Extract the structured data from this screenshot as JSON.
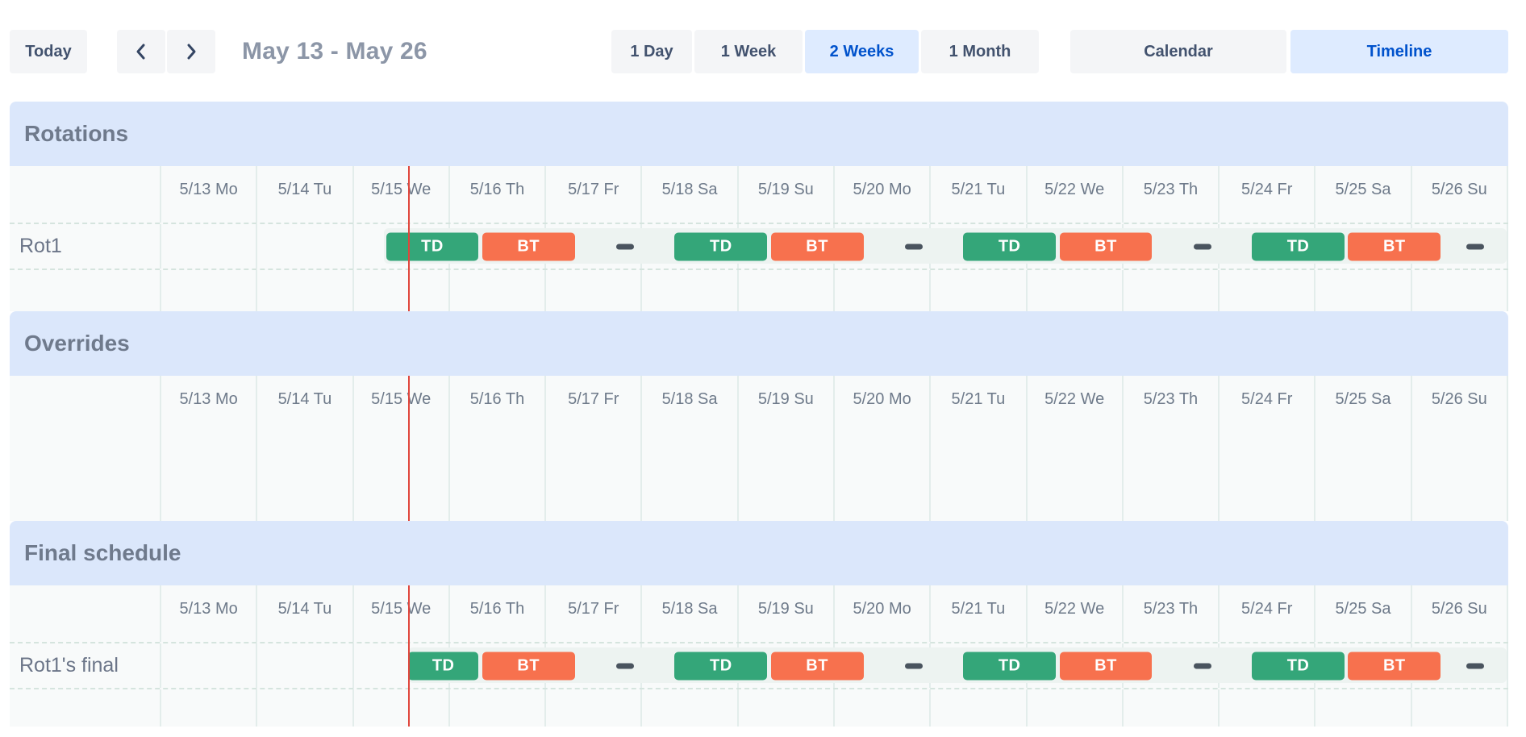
{
  "toolbar": {
    "today": "Today",
    "date_range": "May 13 - May 26",
    "views": [
      "1 Day",
      "1 Week",
      "2 Weeks",
      "1 Month"
    ],
    "active_view": "2 Weeks",
    "modes": [
      "Calendar",
      "Timeline"
    ],
    "active_mode": "Timeline"
  },
  "timeline": {
    "days": [
      "5/13 Mo",
      "5/14 Tu",
      "5/15 We",
      "5/16 Th",
      "5/17 Fr",
      "5/18 Sa",
      "5/19 Su",
      "5/20 Mo",
      "5/21 Tu",
      "5/22 We",
      "5/23 Th",
      "5/24 Fr",
      "5/25 Sa",
      "5/26 Su"
    ],
    "now_day": 2.565,
    "sections": [
      {
        "title": "Rotations",
        "rows": [
          {
            "label": "Rot1",
            "strip_start": 2.315,
            "bars": [
              {
                "label": "TD",
                "type": "td",
                "start": 2.335,
                "end": 3.315
              },
              {
                "label": "BT",
                "type": "bt",
                "start": 3.335,
                "end": 4.315
              },
              {
                "label": "TD",
                "type": "td",
                "start": 5.335,
                "end": 6.315
              },
              {
                "label": "BT",
                "type": "bt",
                "start": 6.335,
                "end": 7.315
              },
              {
                "label": "TD",
                "type": "td",
                "start": 8.335,
                "end": 9.315
              },
              {
                "label": "BT",
                "type": "bt",
                "start": 9.335,
                "end": 10.315
              },
              {
                "label": "TD",
                "type": "td",
                "start": 11.335,
                "end": 12.315
              },
              {
                "label": "BT",
                "type": "bt",
                "start": 12.335,
                "end": 13.315
              }
            ],
            "gap_markers": [
              4.82,
              7.82,
              10.82,
              13.66
            ]
          }
        ]
      },
      {
        "title": "Overrides",
        "rows": []
      },
      {
        "title": "Final schedule",
        "rows": [
          {
            "label": "Rot1's final",
            "strip_start": 2.565,
            "bars": [
              {
                "label": "TD",
                "type": "td",
                "start": 2.565,
                "end": 3.315
              },
              {
                "label": "BT",
                "type": "bt",
                "start": 3.335,
                "end": 4.315
              },
              {
                "label": "TD",
                "type": "td",
                "start": 5.335,
                "end": 6.315
              },
              {
                "label": "BT",
                "type": "bt",
                "start": 6.335,
                "end": 7.315
              },
              {
                "label": "TD",
                "type": "td",
                "start": 8.335,
                "end": 9.315
              },
              {
                "label": "BT",
                "type": "bt",
                "start": 9.335,
                "end": 10.315
              },
              {
                "label": "TD",
                "type": "td",
                "start": 11.335,
                "end": 12.315
              },
              {
                "label": "BT",
                "type": "bt",
                "start": 12.335,
                "end": 13.315
              }
            ],
            "gap_markers": [
              4.82,
              7.82,
              10.82,
              13.66
            ]
          }
        ]
      }
    ]
  },
  "colors": {
    "td": "#34A679",
    "bt": "#F7714E",
    "now_line": "#E0463C",
    "accent": "#0052CC",
    "accent_bg": "#DEEBFF",
    "band_bg": "#DBE7FB",
    "dash": "#4A545F"
  }
}
